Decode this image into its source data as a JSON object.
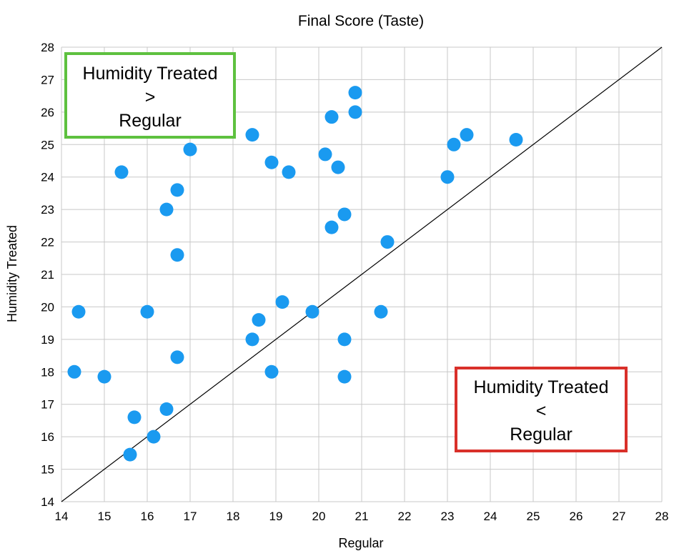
{
  "chart_data": {
    "type": "scatter",
    "title": "Final Score (Taste)",
    "xlabel": "Regular",
    "ylabel": "Humidity Treated",
    "xlim": [
      14,
      28
    ],
    "ylim": [
      14,
      28
    ],
    "xticks": [
      "14",
      "15",
      "16",
      "17",
      "18",
      "19",
      "20",
      "21",
      "22",
      "23",
      "24",
      "25",
      "26",
      "27",
      "28"
    ],
    "yticks": [
      "14",
      "15",
      "16",
      "17",
      "18",
      "19",
      "20",
      "21",
      "22",
      "23",
      "24",
      "25",
      "26",
      "27",
      "28"
    ],
    "grid": true,
    "reference_line": {
      "type": "y=x",
      "color": "#000000"
    },
    "marker_color": "#1a9af0",
    "points": [
      {
        "x": 14.3,
        "y": 18.0
      },
      {
        "x": 14.4,
        "y": 19.85
      },
      {
        "x": 15.0,
        "y": 17.85
      },
      {
        "x": 15.4,
        "y": 24.15
      },
      {
        "x": 15.6,
        "y": 15.45
      },
      {
        "x": 15.7,
        "y": 16.6
      },
      {
        "x": 16.0,
        "y": 19.85
      },
      {
        "x": 16.15,
        "y": 16.0
      },
      {
        "x": 16.45,
        "y": 16.85
      },
      {
        "x": 16.45,
        "y": 23.0
      },
      {
        "x": 16.7,
        "y": 23.6
      },
      {
        "x": 16.7,
        "y": 21.6
      },
      {
        "x": 16.7,
        "y": 18.45
      },
      {
        "x": 17.0,
        "y": 24.85
      },
      {
        "x": 18.45,
        "y": 25.3
      },
      {
        "x": 18.45,
        "y": 19.0
      },
      {
        "x": 18.6,
        "y": 19.6
      },
      {
        "x": 18.9,
        "y": 24.45
      },
      {
        "x": 18.9,
        "y": 18.0
      },
      {
        "x": 19.15,
        "y": 20.15
      },
      {
        "x": 19.3,
        "y": 24.15
      },
      {
        "x": 19.85,
        "y": 19.85
      },
      {
        "x": 20.15,
        "y": 24.7
      },
      {
        "x": 20.3,
        "y": 25.85
      },
      {
        "x": 20.3,
        "y": 22.45
      },
      {
        "x": 20.45,
        "y": 24.3
      },
      {
        "x": 20.6,
        "y": 22.85
      },
      {
        "x": 20.6,
        "y": 19.0
      },
      {
        "x": 20.6,
        "y": 17.85
      },
      {
        "x": 20.85,
        "y": 26.6
      },
      {
        "x": 20.85,
        "y": 26.0
      },
      {
        "x": 21.45,
        "y": 19.85
      },
      {
        "x": 21.6,
        "y": 22.0
      },
      {
        "x": 23.0,
        "y": 24.0
      },
      {
        "x": 23.15,
        "y": 25.0
      },
      {
        "x": 23.45,
        "y": 25.3
      },
      {
        "x": 24.6,
        "y": 25.15
      }
    ],
    "annotations": [
      {
        "lines": [
          "Humidity Treated",
          ">",
          "Regular"
        ],
        "border_color": "#5ec13f",
        "placement": "top-left"
      },
      {
        "lines": [
          "Humidity Treated",
          "<",
          "Regular"
        ],
        "border_color": "#d9302a",
        "placement": "bottom-right"
      }
    ]
  }
}
